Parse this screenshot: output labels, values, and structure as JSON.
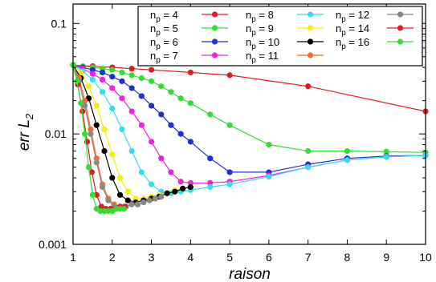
{
  "chart_data": {
    "type": "line",
    "title": "",
    "xlabel": "raison",
    "ylabel_main": "err L",
    "ylabel_sub": "2",
    "xlim": [
      1,
      10
    ],
    "ylim": [
      0.001,
      0.15
    ],
    "yscale": "log",
    "grid": false,
    "legend_position": "top-right",
    "legend_columns": 3,
    "x_ticks": [
      1,
      2,
      3,
      4,
      5,
      6,
      7,
      8,
      9,
      10
    ],
    "x_tick_labels": [
      "1",
      "2",
      "3",
      "4",
      "5",
      "6",
      "7",
      "8",
      "9",
      "10"
    ],
    "y_ticks": [
      0.001,
      0.01,
      0.1
    ],
    "y_tick_labels": [
      "0.001",
      "0.01",
      "0.1"
    ],
    "series": [
      {
        "name": "n_p = 4",
        "label_main": "n",
        "label_sub": "p",
        "label_rest": " = 4",
        "color": "#e41a1c",
        "x": [
          1,
          1.5,
          2,
          2.5,
          3,
          4,
          5,
          7,
          10
        ],
        "y": [
          0.042,
          0.041,
          0.04,
          0.039,
          0.038,
          0.036,
          0.034,
          0.027,
          0.016
        ]
      },
      {
        "name": "n_p = 5",
        "label_main": "n",
        "label_sub": "p",
        "label_rest": " = 5",
        "color": "#33dd33",
        "x": [
          1,
          1.25,
          1.5,
          1.75,
          2,
          2.25,
          2.5,
          2.75,
          3,
          3.25,
          3.5,
          3.75,
          4,
          4.5,
          5,
          6,
          7,
          8,
          9,
          10
        ],
        "y": [
          0.042,
          0.041,
          0.04,
          0.039,
          0.038,
          0.036,
          0.034,
          0.032,
          0.03,
          0.027,
          0.024,
          0.021,
          0.019,
          0.015,
          0.012,
          0.008,
          0.007,
          0.007,
          0.0069,
          0.0068
        ]
      },
      {
        "name": "n_p = 6",
        "label_main": "n",
        "label_sub": "p",
        "label_rest": " = 6",
        "color": "#1f2fd6",
        "x": [
          1,
          1.25,
          1.5,
          1.75,
          2,
          2.25,
          2.5,
          2.75,
          3,
          3.25,
          3.5,
          3.75,
          4,
          4.5,
          5,
          6,
          7,
          8,
          9,
          10
        ],
        "y": [
          0.042,
          0.04,
          0.038,
          0.036,
          0.033,
          0.03,
          0.026,
          0.022,
          0.018,
          0.015,
          0.012,
          0.01,
          0.0085,
          0.006,
          0.0045,
          0.0045,
          0.0053,
          0.006,
          0.0063,
          0.0064
        ]
      },
      {
        "name": "n_p = 7",
        "label_main": "n",
        "label_sub": "p",
        "label_rest": " = 7",
        "color": "#ee22dd",
        "x": [
          1,
          1.25,
          1.5,
          1.75,
          2,
          2.25,
          2.5,
          2.75,
          3,
          3.25,
          3.5,
          3.75,
          4,
          4.5,
          5,
          6,
          7,
          8,
          9,
          10
        ],
        "y": [
          0.042,
          0.039,
          0.035,
          0.031,
          0.026,
          0.021,
          0.016,
          0.012,
          0.0085,
          0.006,
          0.0045,
          0.0037,
          0.0036,
          0.0036,
          0.0037,
          0.0042,
          0.005,
          0.0058,
          0.0062,
          0.0064
        ]
      },
      {
        "name": "n_p = 8",
        "label_main": "n",
        "label_sub": "p",
        "label_rest": " = 8",
        "color": "#33ddee",
        "x": [
          1,
          1.25,
          1.5,
          1.75,
          2,
          2.25,
          2.5,
          2.75,
          3,
          3.25,
          3.5,
          3.75,
          4,
          4.5,
          5,
          6,
          7,
          8,
          9,
          10
        ],
        "y": [
          0.042,
          0.037,
          0.031,
          0.024,
          0.017,
          0.011,
          0.007,
          0.0045,
          0.0035,
          0.003,
          0.0029,
          0.003,
          0.0031,
          0.0033,
          0.0035,
          0.0041,
          0.005,
          0.0058,
          0.0062,
          0.0064
        ]
      },
      {
        "name": "n_p = 9",
        "label_main": "n",
        "label_sub": "p",
        "label_rest": " = 9",
        "color": "#f2ee10",
        "x": [
          1,
          1.2,
          1.4,
          1.6,
          1.8,
          2,
          2.2,
          2.4,
          2.6,
          2.8,
          3,
          3.2,
          3.4,
          3.6,
          3.8,
          4
        ],
        "y": [
          0.042,
          0.036,
          0.027,
          0.018,
          0.011,
          0.0065,
          0.004,
          0.003,
          0.0026,
          0.0026,
          0.0027,
          0.0028,
          0.0029,
          0.0031,
          0.0032,
          0.0033
        ]
      },
      {
        "name": "n_p = 10",
        "label_main": "n",
        "label_sub": "p",
        "label_rest": " = 10",
        "color": "#000000",
        "x": [
          1,
          1.2,
          1.4,
          1.6,
          1.8,
          2,
          2.2,
          2.4,
          2.6,
          2.8,
          3,
          3.2,
          3.4,
          3.6,
          3.8,
          4
        ],
        "y": [
          0.042,
          0.032,
          0.021,
          0.012,
          0.007,
          0.004,
          0.0028,
          0.0025,
          0.0024,
          0.0025,
          0.0026,
          0.0027,
          0.0029,
          0.003,
          0.0032,
          0.0033
        ]
      },
      {
        "name": "n_p = 11",
        "label_main": "n",
        "label_sub": "p",
        "label_rest": " = 11",
        "color": "#ff6a1a",
        "x": [
          1,
          1.15,
          1.3,
          1.45,
          1.6,
          1.75,
          1.9,
          2.05,
          2.2,
          2.35,
          2.5,
          2.65,
          2.8
        ],
        "y": [
          0.042,
          0.032,
          0.02,
          0.011,
          0.006,
          0.0035,
          0.0026,
          0.0023,
          0.0022,
          0.0022,
          0.0023,
          0.0023,
          0.0024
        ]
      },
      {
        "name": "n_p = 12",
        "label_main": "n",
        "label_sub": "p",
        "label_rest": " = 12",
        "color": "#888888",
        "x": [
          1,
          1.15,
          1.3,
          1.45,
          1.6,
          1.75,
          1.9,
          2.05,
          2.2,
          2.35,
          2.5,
          2.65,
          2.8,
          2.95,
          3.1,
          3.25
        ],
        "y": [
          0.042,
          0.03,
          0.018,
          0.01,
          0.0055,
          0.0033,
          0.0025,
          0.0022,
          0.0022,
          0.0022,
          0.0023,
          0.0023,
          0.0024,
          0.0025,
          0.0026,
          0.0027
        ]
      },
      {
        "name": "n_p = 14",
        "label_main": "n",
        "label_sub": "p",
        "label_rest": " = 14",
        "color": "#e41a1c",
        "x": [
          1,
          1.12,
          1.24,
          1.36,
          1.48,
          1.6,
          1.72,
          1.84,
          1.96,
          2.08,
          2.2,
          2.32
        ],
        "y": [
          0.042,
          0.028,
          0.016,
          0.0085,
          0.0045,
          0.0028,
          0.0022,
          0.0021,
          0.0021,
          0.0021,
          0.0022,
          0.0022
        ]
      },
      {
        "name": "n_p = 16",
        "label_main": "n",
        "label_sub": "p",
        "label_rest": " = 16",
        "color": "#33dd33",
        "x": [
          1,
          1.1,
          1.2,
          1.3,
          1.4,
          1.5,
          1.6,
          1.7,
          1.8,
          1.9,
          2,
          2.1,
          2.2,
          2.3
        ],
        "y": [
          0.042,
          0.03,
          0.019,
          0.01,
          0.005,
          0.0028,
          0.0021,
          0.002,
          0.002,
          0.002,
          0.002,
          0.0021,
          0.0021,
          0.0021
        ]
      }
    ]
  }
}
